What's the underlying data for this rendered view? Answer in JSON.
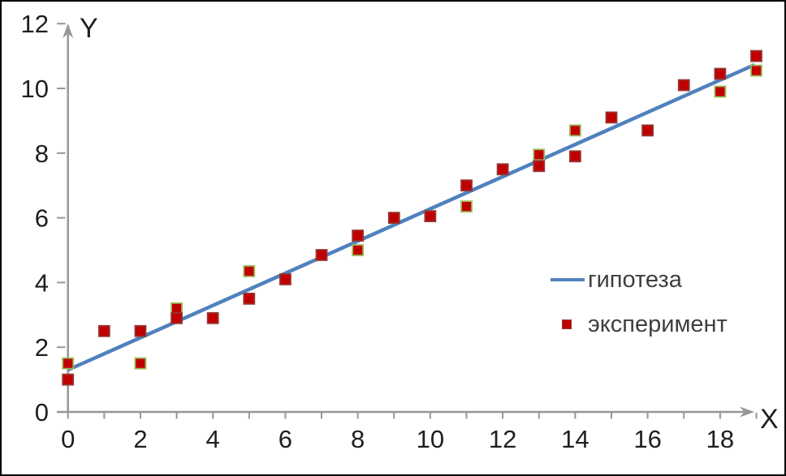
{
  "window": {
    "background": "#FFFFFF",
    "border_color": "#000000"
  },
  "chart_data": {
    "type": "scatter",
    "title": "",
    "xlabel": "X",
    "ylabel": "Y",
    "xlim": [
      0,
      19
    ],
    "ylim": [
      0,
      12
    ],
    "grid": false,
    "legend_position": "middle-right",
    "x_ticks": [
      0,
      1,
      2,
      3,
      4,
      5,
      6,
      7,
      8,
      9,
      10,
      11,
      12,
      13,
      14,
      15,
      16,
      17,
      18,
      19
    ],
    "x_label_values": [
      0,
      2,
      4,
      6,
      8,
      10,
      12,
      14,
      16,
      18
    ],
    "y_tick_marks": [
      2,
      4,
      6,
      8,
      10,
      12
    ],
    "y_label_values": [
      0,
      2,
      4,
      6,
      8,
      10,
      12
    ],
    "colors": {
      "axis": "#969696",
      "tick_text": "#1F1F1F",
      "legend_text": "#3F3F3F",
      "line": "#4F81BD",
      "marker_fill": "#C00000",
      "marker_border_dark": "#953735",
      "marker_border_olive": "#9BBB59"
    },
    "series": [
      {
        "name": "гипотеза",
        "type": "line",
        "color": "#4F81BD",
        "x": [
          0,
          18.95
        ],
        "y": [
          1.3,
          10.73
        ]
      },
      {
        "name": "эксперимент",
        "type": "scatter",
        "marker": "square",
        "fill": "#C00000",
        "points": [
          {
            "x": 0,
            "y": 1.5,
            "border": "olive"
          },
          {
            "x": 0,
            "y": 1.0,
            "border": "dark"
          },
          {
            "x": 1,
            "y": 2.5,
            "border": "dark"
          },
          {
            "x": 2,
            "y": 2.5,
            "border": "dark"
          },
          {
            "x": 2,
            "y": 1.5,
            "border": "olive"
          },
          {
            "x": 3,
            "y": 3.2,
            "border": "olive"
          },
          {
            "x": 3,
            "y": 2.9,
            "border": "dark"
          },
          {
            "x": 4,
            "y": 2.9,
            "border": "dark"
          },
          {
            "x": 5,
            "y": 4.35,
            "border": "olive"
          },
          {
            "x": 5,
            "y": 3.5,
            "border": "dark"
          },
          {
            "x": 6,
            "y": 4.1,
            "border": "dark"
          },
          {
            "x": 7,
            "y": 4.85,
            "border": "dark"
          },
          {
            "x": 8,
            "y": 5.45,
            "border": "dark"
          },
          {
            "x": 8,
            "y": 5.0,
            "border": "olive"
          },
          {
            "x": 9,
            "y": 6.0,
            "border": "dark"
          },
          {
            "x": 10,
            "y": 6.05,
            "border": "dark"
          },
          {
            "x": 11,
            "y": 7.0,
            "border": "dark"
          },
          {
            "x": 11,
            "y": 6.35,
            "border": "olive"
          },
          {
            "x": 12,
            "y": 7.5,
            "border": "dark"
          },
          {
            "x": 13,
            "y": 7.95,
            "border": "olive"
          },
          {
            "x": 13,
            "y": 7.6,
            "border": "dark"
          },
          {
            "x": 14,
            "y": 8.7,
            "border": "olive"
          },
          {
            "x": 14,
            "y": 7.9,
            "border": "dark"
          },
          {
            "x": 15,
            "y": 9.1,
            "border": "dark"
          },
          {
            "x": 16,
            "y": 8.7,
            "border": "dark"
          },
          {
            "x": 17,
            "y": 10.1,
            "border": "dark"
          },
          {
            "x": 18,
            "y": 10.45,
            "border": "dark"
          },
          {
            "x": 18,
            "y": 9.9,
            "border": "olive"
          },
          {
            "x": 19,
            "y": 11.0,
            "border": "dark"
          },
          {
            "x": 19,
            "y": 10.55,
            "border": "olive"
          }
        ]
      }
    ]
  }
}
